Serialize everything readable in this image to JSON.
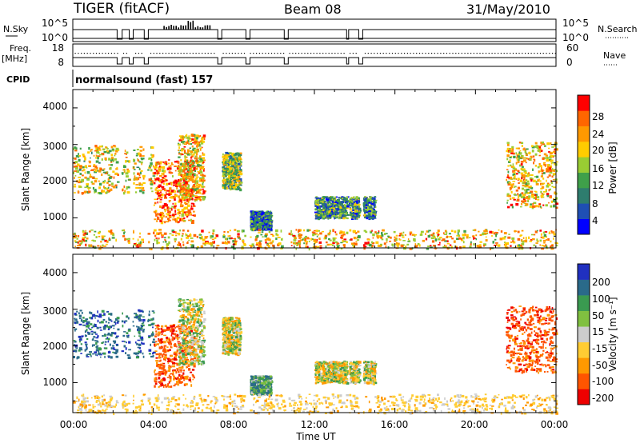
{
  "header": {
    "station": "TIGER (fitACF)",
    "beam": "Beam 08",
    "date": "31/May/2010"
  },
  "strip": {
    "nsky_label": "N.Sky",
    "nsky_ticks": [
      "10^5",
      "10^0"
    ],
    "nsearch_label": "N.Search",
    "nsearch_ticks": [
      "10^5",
      "10^0"
    ],
    "freq_label": "Freq.",
    "freq_unit": "[MHz]",
    "freq_ticks": [
      "18",
      "8"
    ],
    "nave_label": "Nave",
    "nave_ticks": [
      "60",
      "0"
    ],
    "cpid_label": "CPID",
    "cpid_text": "normalsound (fast) 157"
  },
  "xaxis": {
    "label": "Time UT",
    "ticks": [
      "00:00",
      "04:00",
      "08:00",
      "12:00",
      "16:00",
      "20:00",
      "00:00"
    ]
  },
  "power_panel": {
    "ylabel": "Slant Range [km]",
    "yticks": [
      "4000",
      "3000",
      "2000",
      "1000"
    ],
    "cbar_label": "Power [dB]",
    "cbar_ticks": [
      "28",
      "24",
      "20",
      "16",
      "12",
      "8",
      "4"
    ],
    "colors": [
      "#0000ff",
      "#1f4fb4",
      "#2e7d6e",
      "#3fa04a",
      "#99cc33",
      "#ffcc00",
      "#ff9900",
      "#ff6600",
      "#ff0000"
    ]
  },
  "velocity_panel": {
    "ylabel": "Slant Range [km]",
    "yticks": [
      "4000",
      "3000",
      "2000",
      "1000"
    ],
    "cbar_label": "Velocity [m s⁻¹]",
    "cbar_ticks": [
      "200",
      "100",
      "50",
      "15",
      "-15",
      "-50",
      "-100",
      "-200"
    ],
    "colors": [
      "#2030c0",
      "#2a6a8a",
      "#3a9a50",
      "#80c040",
      "#cccccc",
      "#ffcc33",
      "#ff9900",
      "#ff5500",
      "#ee0000"
    ]
  },
  "chart_data": {
    "type": "heatmap",
    "x_range_hours": [
      0,
      24
    ],
    "y_range_km": [
      180,
      4500
    ],
    "data_gaps_hours": [
      [
        2.2,
        2.4
      ],
      [
        2.75,
        2.95
      ],
      [
        3.5,
        3.7
      ],
      [
        7.15,
        7.35
      ],
      [
        8.55,
        8.75
      ],
      [
        10.5,
        10.7
      ],
      [
        13.6,
        13.7
      ],
      [
        14.2,
        14.4
      ]
    ],
    "scatter_regions": [
      {
        "t": [
          0.0,
          4.0
        ],
        "r": [
          1700,
          3000
        ],
        "power_db": 18,
        "velocity": 150
      },
      {
        "t": [
          4.0,
          6.0
        ],
        "r": [
          900,
          2600
        ],
        "power_db": 24,
        "velocity": -150
      },
      {
        "t": [
          5.2,
          6.5
        ],
        "r": [
          1500,
          3300
        ],
        "power_db": 20,
        "velocity": 0
      },
      {
        "t": [
          7.4,
          8.3
        ],
        "r": [
          1800,
          2800
        ],
        "power_db": 14,
        "velocity": 0
      },
      {
        "t": [
          8.8,
          9.8
        ],
        "r": [
          700,
          1200
        ],
        "power_db": 8,
        "velocity": 80
      },
      {
        "t": [
          12.0,
          15.0
        ],
        "r": [
          1000,
          1600
        ],
        "power_db": 10,
        "velocity": 0
      },
      {
        "t": [
          21.5,
          24.0
        ],
        "r": [
          1300,
          3100
        ],
        "power_db": 20,
        "velocity": -150
      },
      {
        "t": [
          0.0,
          24.0
        ],
        "r": [
          180,
          700
        ],
        "power_db": 20,
        "velocity": -30
      }
    ]
  }
}
